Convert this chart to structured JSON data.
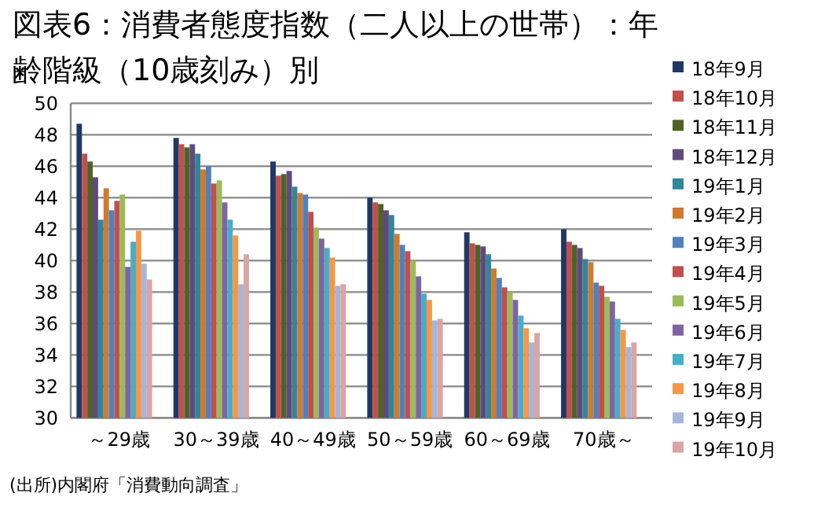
{
  "chart_data": {
    "type": "bar",
    "title": "図表6：消費者態度指数（二人以上の世帯）：年齢階級（10歳刻み）別",
    "categories": [
      "～29歳",
      "30～39歳",
      "40～49歳",
      "50～59歳",
      "60～69歳",
      "70歳～"
    ],
    "ylim": [
      30,
      50
    ],
    "yticks": [
      30,
      32,
      34,
      36,
      38,
      40,
      42,
      44,
      46,
      48,
      50
    ],
    "grid": "y",
    "legend": "right",
    "annotations": [
      "(出所)内閣府「消費動向調査」"
    ],
    "series": [
      {
        "name": "18年9月",
        "color": "#1f3864",
        "values": [
          48.7,
          47.8,
          46.3,
          44.0,
          41.8,
          42.0
        ]
      },
      {
        "name": "18年10月",
        "color": "#c0504d",
        "values": [
          46.8,
          47.4,
          45.4,
          43.7,
          41.1,
          41.2
        ]
      },
      {
        "name": "18年11月",
        "color": "#4f6228",
        "values": [
          46.3,
          47.2,
          45.5,
          43.6,
          41.0,
          41.0
        ]
      },
      {
        "name": "18年12月",
        "color": "#604a7b",
        "values": [
          45.3,
          47.4,
          45.7,
          43.2,
          40.9,
          40.8
        ]
      },
      {
        "name": "19年1月",
        "color": "#31859c",
        "values": [
          42.6,
          46.8,
          44.7,
          42.9,
          40.4,
          40.1
        ]
      },
      {
        "name": "19年2月",
        "color": "#d07a30",
        "values": [
          44.6,
          45.8,
          44.3,
          41.7,
          39.5,
          39.9
        ]
      },
      {
        "name": "19年3月",
        "color": "#4f81bd",
        "values": [
          43.2,
          46.0,
          44.2,
          41.0,
          38.9,
          38.6
        ]
      },
      {
        "name": "19年4月",
        "color": "#c0504d",
        "values": [
          43.8,
          44.9,
          43.1,
          40.6,
          38.3,
          38.4
        ]
      },
      {
        "name": "19年5月",
        "color": "#9bbb59",
        "values": [
          44.2,
          45.1,
          42.1,
          40.0,
          38.0,
          37.7
        ]
      },
      {
        "name": "19年6月",
        "color": "#8064a2",
        "values": [
          39.6,
          43.7,
          41.4,
          39.0,
          37.5,
          37.4
        ]
      },
      {
        "name": "19年7月",
        "color": "#4bacc6",
        "values": [
          41.2,
          42.6,
          40.8,
          37.9,
          36.5,
          36.3
        ]
      },
      {
        "name": "19年8月",
        "color": "#f79646",
        "values": [
          41.9,
          41.6,
          40.2,
          37.5,
          35.7,
          35.6
        ]
      },
      {
        "name": "19年9月",
        "color": "#a5b6d8",
        "values": [
          39.8,
          38.5,
          38.4,
          36.2,
          34.8,
          34.5
        ]
      },
      {
        "name": "19年10月",
        "color": "#d9a5a5",
        "values": [
          38.8,
          40.4,
          38.5,
          36.3,
          35.4,
          34.8
        ]
      }
    ]
  }
}
